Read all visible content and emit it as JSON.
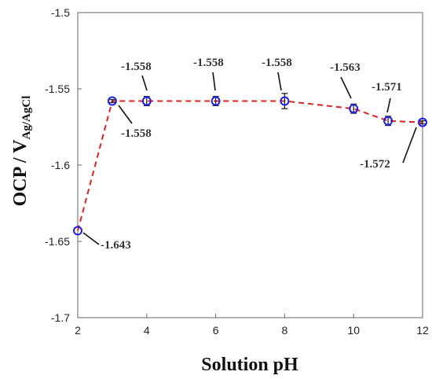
{
  "chart_data": {
    "type": "scatter",
    "title": "",
    "xlabel": "Solution pH",
    "ylabel_main": "OCP / V",
    "ylabel_sub": "Ag/AgCl",
    "xlim": [
      2,
      12
    ],
    "ylim": [
      -1.7,
      -1.5
    ],
    "x_ticks": [
      2,
      4,
      6,
      8,
      10,
      12
    ],
    "x_tick_labels": [
      "2",
      "4",
      "6",
      "8",
      "10",
      "12"
    ],
    "y_ticks": [
      -1.5,
      -1.55,
      -1.6,
      -1.65,
      -1.7
    ],
    "y_tick_labels": [
      "-1.5",
      "-1.55",
      "-1.6",
      "-1.65",
      "-1.7"
    ],
    "grid": false,
    "series": [
      {
        "x": [
          2,
          3,
          4,
          6,
          8,
          10,
          11,
          12
        ],
        "y": [
          -1.643,
          -1.558,
          -1.558,
          -1.558,
          -1.558,
          -1.563,
          -1.571,
          -1.572
        ],
        "yerr": [
          0.0,
          0.001,
          0.003,
          0.003,
          0.005,
          0.003,
          0.003,
          0.001
        ],
        "marker_edge_color": "#1f1fe0",
        "line_color": "#e02020",
        "line_style": "dashed"
      }
    ],
    "annotations": [
      "-1.643",
      "-1.558",
      "-1.558",
      "-1.558",
      "-1.558",
      "-1.563",
      "-1.571",
      "-1.572"
    ]
  }
}
